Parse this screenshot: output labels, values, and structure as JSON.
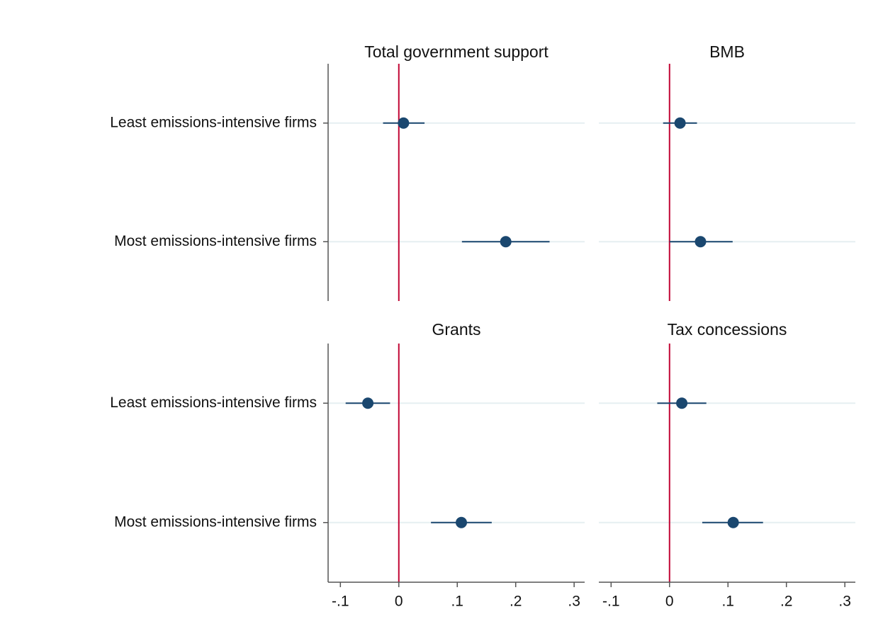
{
  "chart_data": [
    {
      "type": "errorbar",
      "title": "Total government support",
      "categories": [
        "Least emissions-intensive firms",
        "Most emissions-intensive firms"
      ],
      "values": [
        0.008,
        0.183
      ],
      "lower": [
        -0.027,
        0.108
      ],
      "upper": [
        0.044,
        0.258
      ],
      "xlim": [
        -0.121,
        0.318
      ],
      "refline": 0,
      "refline_color": "#c10534",
      "color": "#1a476f",
      "grid": true
    },
    {
      "type": "errorbar",
      "title": "BMB",
      "values": [
        0.018,
        0.053
      ],
      "lower": [
        -0.011,
        0.0
      ],
      "upper": [
        0.047,
        0.108
      ],
      "xlim": [
        -0.121,
        0.318
      ],
      "refline": 0,
      "refline_color": "#c10534",
      "color": "#1a476f",
      "grid": true
    },
    {
      "type": "errorbar",
      "title": "Grants",
      "categories": [
        "Least emissions-intensive firms",
        "Most emissions-intensive firms"
      ],
      "values": [
        -0.053,
        0.107
      ],
      "lower": [
        -0.091,
        0.055
      ],
      "upper": [
        -0.015,
        0.159
      ],
      "xlim": [
        -0.121,
        0.318
      ],
      "xticks": [
        {
          "value": -0.1,
          "label": "-.1"
        },
        0,
        {
          "value": 0.1,
          "label": ".1"
        },
        {
          "value": 0.2,
          "label": ".2"
        },
        {
          "value": 0.3,
          "label": ".3"
        }
      ],
      "refline": 0,
      "refline_color": "#c10534",
      "color": "#1a476f",
      "grid": true
    },
    {
      "type": "errorbar",
      "title": "Tax concessions",
      "values": [
        0.021,
        0.109
      ],
      "lower": [
        -0.021,
        0.056
      ],
      "upper": [
        0.063,
        0.16
      ],
      "xlim": [
        -0.121,
        0.318
      ],
      "xticks": [
        {
          "value": -0.1,
          "label": "-.1"
        },
        0,
        {
          "value": 0.1,
          "label": ".1"
        },
        {
          "value": 0.2,
          "label": ".2"
        },
        {
          "value": 0.3,
          "label": ".3"
        }
      ],
      "refline": 0,
      "refline_color": "#c10534",
      "color": "#1a476f",
      "grid": true
    }
  ]
}
